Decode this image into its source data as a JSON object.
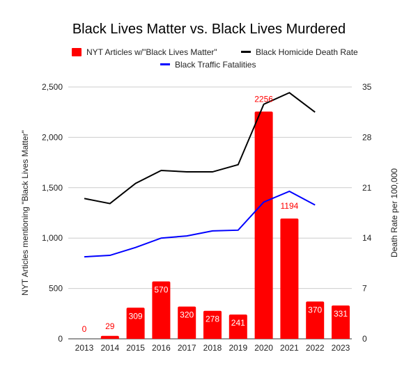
{
  "chart_data": {
    "type": "bar",
    "title": "Black Lives Matter vs. Black Lives Murdered",
    "categories": [
      "2013",
      "2014",
      "2015",
      "2016",
      "2017",
      "2018",
      "2019",
      "2020",
      "2021",
      "2022",
      "2023"
    ],
    "ylabel": "NYT Articles mentioning \"Black Lives Matter\"",
    "y2label": "Death Rate per 100,000",
    "ylim": [
      0,
      2500
    ],
    "y2lim": [
      0,
      35
    ],
    "yticks": [
      "0",
      "500",
      "1,000",
      "1,500",
      "2,000",
      "2,500"
    ],
    "y2ticks": [
      "0",
      "7",
      "14",
      "21",
      "28",
      "35"
    ],
    "grid": true,
    "legend_position": "top",
    "series": [
      {
        "name": "NYT Articles w/\"Black Lives Matter\"",
        "type": "bar",
        "axis": "left",
        "color": "#ff0000",
        "values": [
          0,
          29,
          309,
          570,
          320,
          278,
          241,
          2256,
          1194,
          370,
          331
        ],
        "labels": [
          "0",
          "29",
          "309",
          "570",
          "320",
          "278",
          "241",
          "2256",
          "1194",
          "370",
          "331"
        ]
      },
      {
        "name": "Black Homicide Death Rate",
        "type": "line",
        "axis": "right",
        "color": "#000000",
        "values": [
          19.5,
          18.8,
          21.6,
          23.4,
          23.2,
          23.2,
          24.2,
          32.6,
          34.2,
          31.5,
          null
        ]
      },
      {
        "name": "Black Traffic Fatalities",
        "type": "line",
        "axis": "right",
        "color": "#0000ff",
        "values": [
          11.4,
          11.6,
          12.7,
          14.0,
          14.3,
          15.0,
          15.1,
          19.0,
          20.5,
          18.6,
          null
        ]
      }
    ]
  }
}
